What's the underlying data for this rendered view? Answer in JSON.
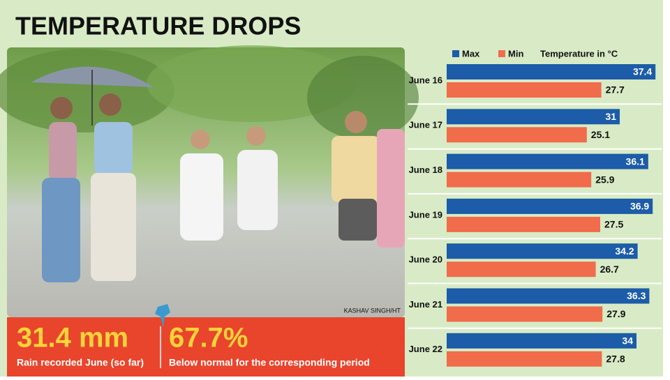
{
  "title": "TEMPERATURE DROPS",
  "photo_credit": "KASHAV SINGH/HT",
  "stats": [
    {
      "value": "31.4 mm",
      "label": "Rain recorded June (so far)"
    },
    {
      "value": "67.7%",
      "label": "Below normal for the corresponding period"
    }
  ],
  "chart_data": {
    "type": "bar",
    "orientation": "horizontal",
    "unit_label": "Temperature in °C",
    "categories": [
      "June 16",
      "June 17",
      "June 18",
      "June 19",
      "June 20",
      "June 21",
      "June 22"
    ],
    "series": [
      {
        "name": "Max",
        "color": "#1c5ca8",
        "values": [
          37.4,
          31,
          36.1,
          36.9,
          34.2,
          36.3,
          34
        ]
      },
      {
        "name": "Min",
        "color": "#f06c4b",
        "values": [
          27.7,
          25.1,
          25.9,
          27.5,
          26.7,
          27.9,
          27.8
        ]
      }
    ]
  }
}
